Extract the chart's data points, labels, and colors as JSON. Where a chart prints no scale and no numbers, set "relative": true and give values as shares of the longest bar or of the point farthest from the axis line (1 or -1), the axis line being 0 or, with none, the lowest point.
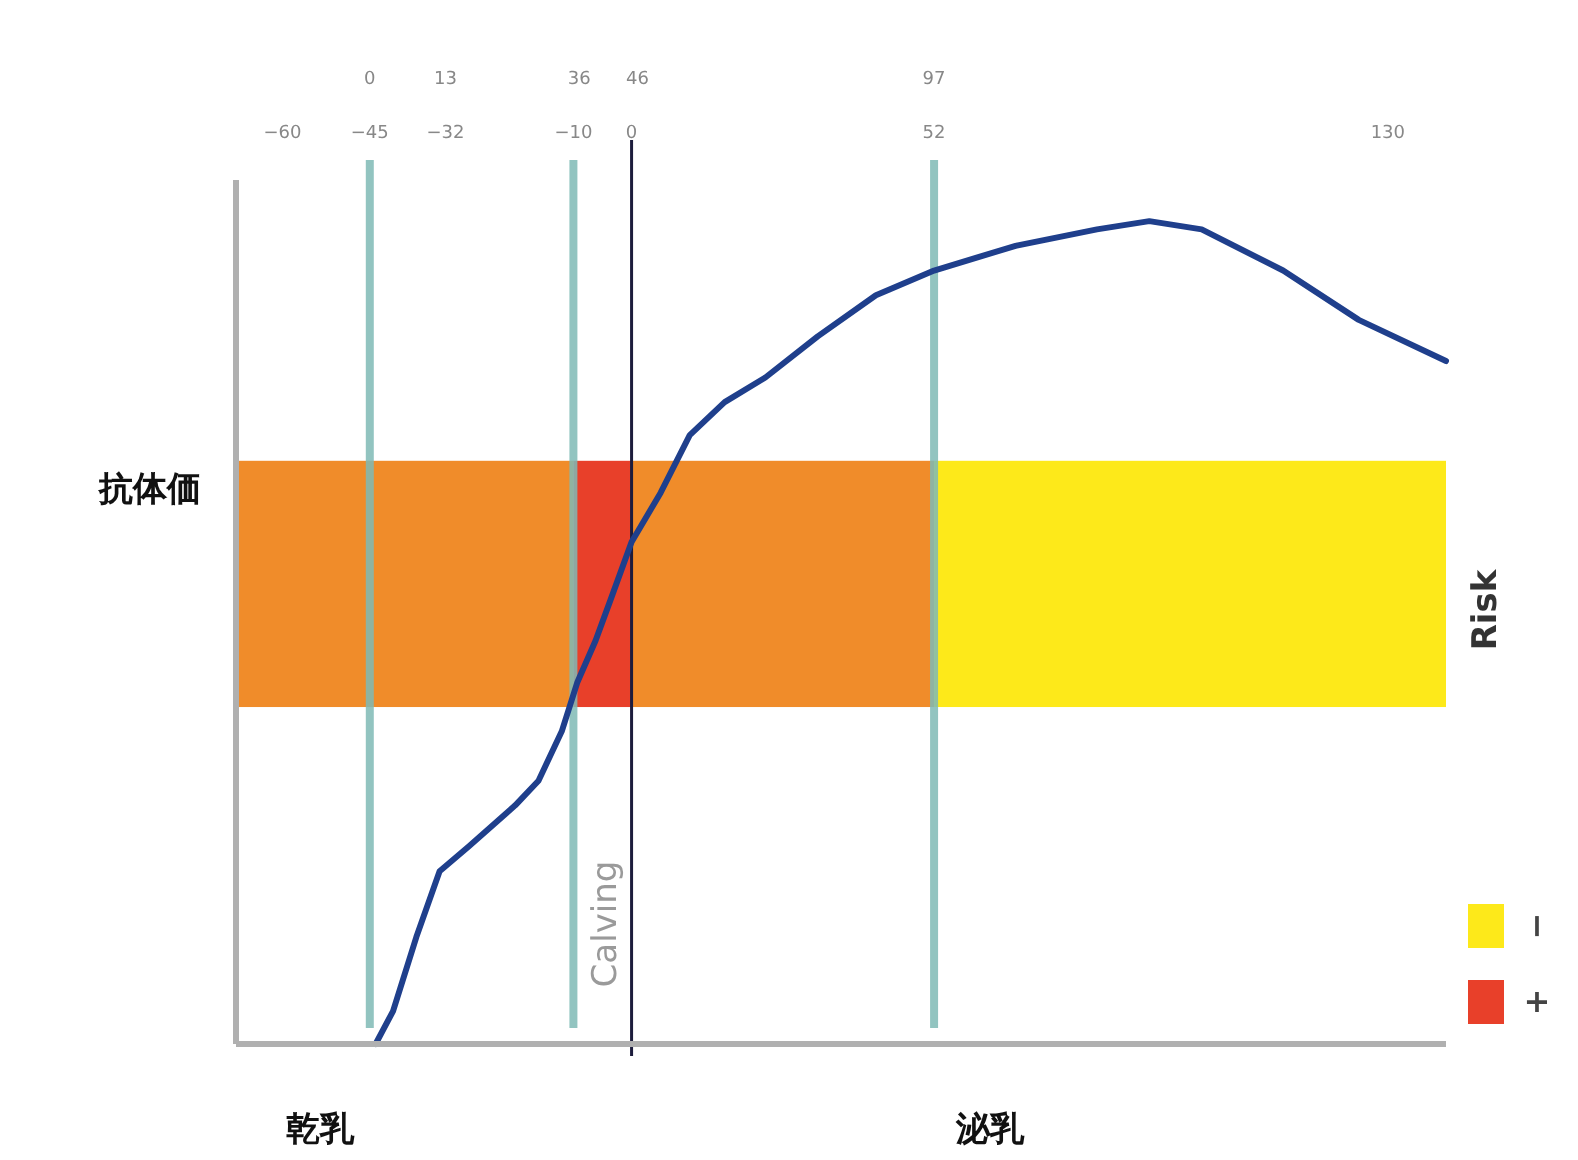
{
  "chart_data": {
    "type": "line",
    "ylabel": "抗体価",
    "legend_title": "Risk",
    "relative": true,
    "legend": "bottom right",
    "grid": false,
    "xlim": [
      -68,
      140
    ],
    "xticks": [
      -60,
      -45,
      -32,
      -10,
      0,
      52,
      130
    ],
    "x2lim": [
      -23,
      185
    ],
    "x2ticks": [
      0,
      13,
      36,
      46,
      97
    ],
    "ref_lines": [
      {
        "axis": "x",
        "value": -45,
        "color": "#7fbab6"
      },
      {
        "axis": "x",
        "value": -10,
        "color": "#7fbab6"
      },
      {
        "axis": "x",
        "value": 52,
        "color": "#7fbab6"
      },
      {
        "axis": "x",
        "value": 0,
        "label": "Calving",
        "color": "#1c1c3c"
      }
    ],
    "bands": [
      {
        "axis": "x",
        "from": -68,
        "to": -10,
        "color": "#f08c2a"
      },
      {
        "axis": "x",
        "from": 0,
        "to": 52,
        "color": "#f08c2a"
      },
      {
        "axis": "x",
        "from": -10,
        "to": 0,
        "label": "+",
        "color": "#e8402a"
      },
      {
        "axis": "x",
        "from": 52,
        "to": 140,
        "label": "−",
        "color": "#fde91a"
      }
    ],
    "series": [
      {
        "type": "line",
        "color": "#1f3f8c",
        "x": [
          -44,
          -41,
          -37,
          -33,
          -28,
          -20,
          -16,
          -12,
          -9.3,
          -6.2,
          -3.6,
          0,
          5,
          10,
          16,
          23,
          32,
          42,
          52,
          66,
          80,
          89,
          98,
          112,
          125,
          140
        ],
        "values": [
          0,
          0.04,
          0.13,
          0.21,
          0.24,
          0.29,
          0.32,
          0.38,
          0.44,
          0.49,
          0.54,
          0.61,
          0.67,
          0.74,
          0.78,
          0.81,
          0.86,
          0.91,
          0.94,
          0.97,
          0.99,
          1,
          0.99,
          0.94,
          0.88,
          0.83
        ]
      }
    ],
    "annotations": [
      "乾乳",
      "泌乳"
    ]
  }
}
